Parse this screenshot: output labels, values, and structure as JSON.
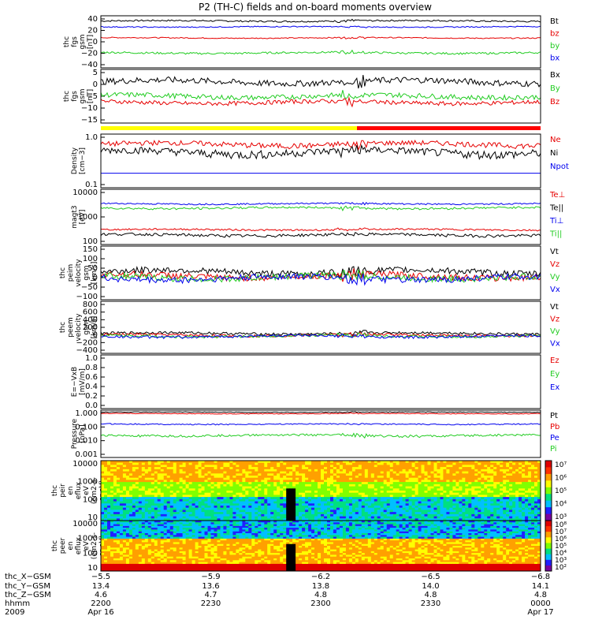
{
  "title": "P2 (TH-C) fields and on-board moments overview",
  "colors": {
    "black": "#000000",
    "red": "#e60000",
    "green": "#22cc22",
    "blue": "#0000ee",
    "yellow": "#ffff00",
    "barred": "#ff0000"
  },
  "chart_data": [
    {
      "id": "fgs_mag",
      "type": "line",
      "ylabel": [
        "thc",
        "fgs",
        "gsm",
        "[nT]"
      ],
      "yticks": [
        "40",
        "20",
        "0",
        "−20",
        "−40"
      ],
      "ylim": [
        -40,
        40
      ],
      "series": [
        {
          "name": "Bt",
          "color": "black",
          "base": 32,
          "noise": 1.2
        },
        {
          "name": "bz",
          "color": "red",
          "base": 6,
          "noise": 0.8
        },
        {
          "name": "by",
          "color": "green",
          "base": -17,
          "noise": 1.5
        },
        {
          "name": "bx",
          "color": "blue",
          "base": 23,
          "noise": 0.8
        }
      ]
    },
    {
      "id": "fgs_comp",
      "type": "line",
      "ylabel": [
        "thc",
        "fgs",
        "gsm",
        "[nT]"
      ],
      "yticks": [
        "5",
        "0",
        "−5",
        "−10",
        "−15"
      ],
      "ylim": [
        -18,
        8
      ],
      "series": [
        {
          "name": "Bx",
          "color": "black",
          "base": 2,
          "noise": 1.5
        },
        {
          "name": "By",
          "color": "green",
          "base": -5,
          "noise": 1.2
        },
        {
          "name": "Bz",
          "color": "red",
          "base": -8,
          "noise": 1
        }
      ]
    },
    {
      "id": "density",
      "type": "line",
      "log": true,
      "ylabel": [
        "Density",
        "[cm−3]"
      ],
      "yticks": [
        "1.0",
        "0.1"
      ],
      "ylim": [
        0.1,
        1.3
      ],
      "series": [
        {
          "name": "Ne",
          "color": "red",
          "base": 0.8,
          "noise": 0.1
        },
        {
          "name": "Ni",
          "color": "black",
          "base": 0.55,
          "noise": 0.1
        },
        {
          "name": "Npot",
          "color": "blue",
          "base": 0.2,
          "noise": 0
        }
      ]
    },
    {
      "id": "temperature",
      "type": "line",
      "log": true,
      "ylabel": [
        "magt3",
        "[eV]"
      ],
      "yticks": [
        "10000",
        "1000",
        "100"
      ],
      "ylim": [
        60,
        12000
      ],
      "series": [
        {
          "name": "Te⊥",
          "color": "red",
          "base": 250,
          "noise": 20
        },
        {
          "name": "Te||",
          "color": "black",
          "base": 150,
          "noise": 20
        },
        {
          "name": "Ti⊥",
          "color": "blue",
          "base": 3000,
          "noise": 200
        },
        {
          "name": "Ti||",
          "color": "green",
          "base": 2000,
          "noise": 200
        }
      ]
    },
    {
      "id": "peim_vel",
      "type": "line",
      "ylabel": [
        "thc",
        "peim",
        "velocity",
        "gsm",
        "[km/s]"
      ],
      "yticks": [
        "150",
        "100",
        "50",
        "0",
        "−50",
        "−100"
      ],
      "ylim": [
        -100,
        150
      ],
      "series": [
        {
          "name": "Vt",
          "color": "black",
          "base": 30,
          "noise": 15
        },
        {
          "name": "Vz",
          "color": "red",
          "base": 10,
          "noise": 15
        },
        {
          "name": "Vy",
          "color": "green",
          "base": 5,
          "noise": 15
        },
        {
          "name": "Vx",
          "color": "blue",
          "base": 0,
          "noise": 15
        }
      ]
    },
    {
      "id": "peem_vel",
      "type": "line",
      "ylabel": [
        "thc",
        "peem",
        "velocity",
        "gsm",
        "[km/s]"
      ],
      "yticks": [
        "800",
        "600",
        "400",
        "200",
        "0",
        "−200",
        "−400"
      ],
      "ylim": [
        -400,
        800
      ],
      "series": [
        {
          "name": "Vt",
          "color": "black",
          "base": 60,
          "noise": 30
        },
        {
          "name": "Vz",
          "color": "red",
          "base": 20,
          "noise": 30
        },
        {
          "name": "Vy",
          "color": "green",
          "base": 0,
          "noise": 30
        },
        {
          "name": "Vx",
          "color": "blue",
          "base": -10,
          "noise": 30
        }
      ]
    },
    {
      "id": "efield",
      "type": "line",
      "ylabel": [
        "E=−VxB",
        "[mV/m]"
      ],
      "yticks": [
        "1.0",
        "0.8",
        "0.6",
        "0.4",
        "0.2",
        "0.0"
      ],
      "ylim": [
        0,
        1
      ],
      "series": [
        {
          "name": "Ez",
          "color": "red",
          "values": []
        },
        {
          "name": "Ey",
          "color": "green",
          "values": []
        },
        {
          "name": "Ex",
          "color": "blue",
          "values": []
        }
      ]
    },
    {
      "id": "pressure",
      "type": "line",
      "log": true,
      "ylabel": [
        "Pressure",
        "[nPa]"
      ],
      "yticks": [
        "1.000",
        "0.100",
        "0.010",
        "0.001"
      ],
      "ylim": [
        0.001,
        1.0
      ],
      "series": [
        {
          "name": "Pt",
          "color": "black",
          "base": 0.75,
          "noise": 0.03
        },
        {
          "name": "Pb",
          "color": "red",
          "base": 0.6,
          "noise": 0.03
        },
        {
          "name": "Pe",
          "color": "blue",
          "base": 0.13,
          "noise": 0.01
        },
        {
          "name": "Pi",
          "color": "green",
          "base": 0.025,
          "noise": 0.004
        }
      ]
    },
    {
      "id": "peir_spec",
      "type": "heatmap",
      "ylabel": [
        "thc",
        "peir",
        "en",
        "eflux",
        "eV",
        "(cm2-s-",
        "sr-eV)"
      ],
      "yticks": [
        "10000",
        "1000",
        "100",
        "10"
      ],
      "cbar": [
        "10⁷",
        "10⁶",
        "10⁵",
        "10⁴",
        "10³"
      ]
    },
    {
      "id": "peer_spec",
      "type": "heatmap",
      "ylabel": [
        "thc",
        "peer",
        "en",
        "eflux",
        "eV",
        "(cm2-s-",
        "sr-eV)"
      ],
      "yticks": [
        "10000",
        "1000",
        "100",
        "10"
      ],
      "cbar": [
        "10⁸",
        "10⁷",
        "10⁶",
        "10⁵",
        "10⁴",
        "10³",
        "10²"
      ]
    }
  ],
  "x_axis": {
    "row_labels": [
      "thc_X−GSM",
      "thc_Y−GSM",
      "thc_Z−GSM",
      "hhmm",
      "2009"
    ],
    "ticks": [
      {
        "rows": [
          "−5.5",
          "13.4",
          "4.6",
          "2200",
          "Apr 16"
        ]
      },
      {
        "rows": [
          "−5.9",
          "13.6",
          "4.7",
          "2230",
          ""
        ]
      },
      {
        "rows": [
          "−6.2",
          "13.8",
          "4.8",
          "2300",
          ""
        ]
      },
      {
        "rows": [
          "−6.5",
          "14.0",
          "4.8",
          "2330",
          ""
        ]
      },
      {
        "rows": [
          "−6.8",
          "14.1",
          "4.8",
          "0000",
          "Apr 17"
        ]
      }
    ]
  }
}
